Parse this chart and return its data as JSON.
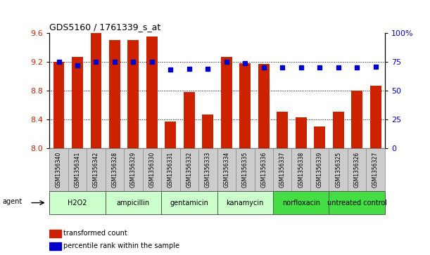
{
  "title": "GDS5160 / 1761339_s_at",
  "samples": [
    "GSM1356340",
    "GSM1356341",
    "GSM1356342",
    "GSM1356328",
    "GSM1356329",
    "GSM1356330",
    "GSM1356331",
    "GSM1356332",
    "GSM1356333",
    "GSM1356334",
    "GSM1356335",
    "GSM1356336",
    "GSM1356337",
    "GSM1356338",
    "GSM1356339",
    "GSM1356325",
    "GSM1356326",
    "GSM1356327"
  ],
  "bar_values": [
    9.2,
    9.27,
    9.6,
    9.5,
    9.5,
    9.55,
    8.37,
    8.78,
    8.47,
    9.27,
    9.18,
    9.17,
    8.5,
    8.43,
    8.3,
    8.5,
    8.8,
    8.87
  ],
  "dot_values": [
    75,
    72,
    75,
    75,
    75,
    75,
    68,
    69,
    69,
    75,
    74,
    70,
    70,
    70,
    70,
    70,
    70,
    71
  ],
  "bar_color": "#cc2200",
  "dot_color": "#0000cc",
  "ylim_left": [
    8.0,
    9.6
  ],
  "ylim_right": [
    0,
    100
  ],
  "yticks_left": [
    8.0,
    8.4,
    8.8,
    9.2,
    9.6
  ],
  "yticks_right": [
    0,
    25,
    50,
    75,
    100
  ],
  "ytick_labels_right": [
    "0",
    "25",
    "50",
    "75",
    "100%"
  ],
  "grid_values": [
    8.4,
    8.8,
    9.2
  ],
  "groups": [
    {
      "label": "H2O2",
      "start": 0,
      "end": 3,
      "color": "#ccffcc"
    },
    {
      "label": "ampicillin",
      "start": 3,
      "end": 6,
      "color": "#ccffcc"
    },
    {
      "label": "gentamicin",
      "start": 6,
      "end": 9,
      "color": "#ccffcc"
    },
    {
      "label": "kanamycin",
      "start": 9,
      "end": 12,
      "color": "#ccffcc"
    },
    {
      "label": "norfloxacin",
      "start": 12,
      "end": 15,
      "color": "#44dd44"
    },
    {
      "label": "untreated control",
      "start": 15,
      "end": 18,
      "color": "#44dd44"
    }
  ],
  "legend_bar_label": "transformed count",
  "legend_dot_label": "percentile rank within the sample",
  "agent_label": "agent",
  "sample_box_color": "#cccccc",
  "sample_box_edge": "#888888",
  "bg_color": "#ffffff",
  "bar_bottom": 8.0,
  "bar_width": 0.6
}
